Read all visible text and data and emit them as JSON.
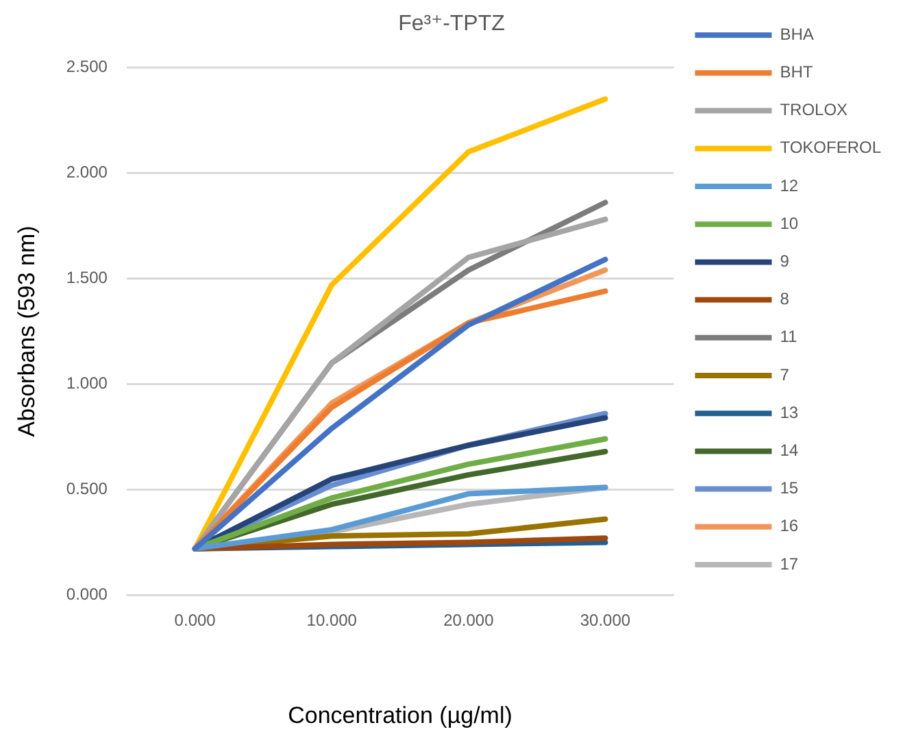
{
  "chart_data": {
    "type": "line",
    "title": "Fe³⁺-TPTZ",
    "xlabel": "Concentration (µg/ml)",
    "ylabel": "Absorbans (593 nm)",
    "categories": [
      "0.000",
      "10.000",
      "20.000",
      "30.000"
    ],
    "ylim": [
      0,
      2.5
    ],
    "yticks": [
      {
        "value": 0,
        "label": "0.000"
      },
      {
        "value": 0.5,
        "label": "0.500"
      },
      {
        "value": 1,
        "label": "1.000"
      },
      {
        "value": 1.5,
        "label": "1.500"
      },
      {
        "value": 2,
        "label": "2.000"
      },
      {
        "value": 2.5,
        "label": "2.500"
      }
    ],
    "grid": "y",
    "legend": "right",
    "marker": "none",
    "line_style": "solid",
    "series": [
      {
        "name": "BHA",
        "color": "#4472c4",
        "values": [
          0.22,
          0.79,
          1.28,
          1.59
        ]
      },
      {
        "name": "BHT",
        "color": "#ed7d31",
        "values": [
          0.22,
          0.89,
          1.29,
          1.44
        ]
      },
      {
        "name": "TROLOX",
        "color": "#a5a5a5",
        "values": [
          0.22,
          1.1,
          1.6,
          1.78
        ]
      },
      {
        "name": "TOKOFEROL",
        "color": "#ffc000",
        "values": [
          0.22,
          1.47,
          2.1,
          2.35
        ]
      },
      {
        "name": "12",
        "color": "#5b9bd5",
        "values": [
          0.22,
          0.31,
          0.48,
          0.51
        ]
      },
      {
        "name": "10",
        "color": "#70ad47",
        "values": [
          0.22,
          0.46,
          0.62,
          0.74
        ]
      },
      {
        "name": "9",
        "color": "#264478",
        "values": [
          0.22,
          0.55,
          0.71,
          0.84
        ]
      },
      {
        "name": "8",
        "color": "#9e480e",
        "values": [
          0.22,
          0.24,
          0.25,
          0.27
        ]
      },
      {
        "name": "11",
        "color": "#7c7c7c",
        "values": [
          0.22,
          1.1,
          1.54,
          1.86
        ]
      },
      {
        "name": "7",
        "color": "#997300",
        "values": [
          0.22,
          0.28,
          0.29,
          0.36
        ]
      },
      {
        "name": "13",
        "color": "#255e91",
        "values": [
          0.22,
          0.23,
          0.24,
          0.25
        ]
      },
      {
        "name": "14",
        "color": "#43682b",
        "values": [
          0.22,
          0.43,
          0.57,
          0.68
        ]
      },
      {
        "name": "15",
        "color": "#698ed0",
        "values": [
          0.22,
          0.52,
          0.71,
          0.86
        ]
      },
      {
        "name": "16",
        "color": "#f1975a",
        "values": [
          0.22,
          0.91,
          1.29,
          1.54
        ]
      },
      {
        "name": "17",
        "color": "#b7b7b7",
        "values": [
          0.22,
          0.3,
          0.43,
          0.51
        ]
      }
    ]
  }
}
